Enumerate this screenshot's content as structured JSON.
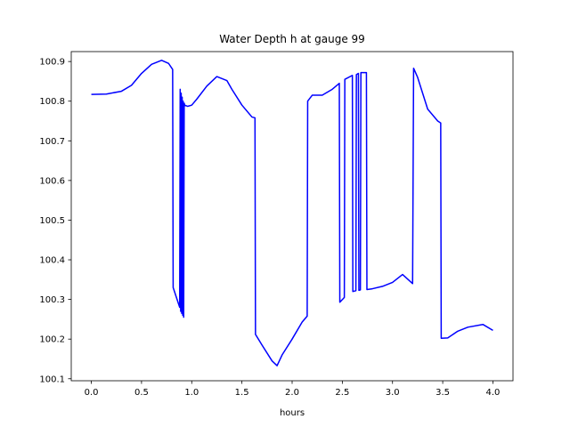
{
  "chart_data": {
    "type": "line",
    "title": "Water Depth h at gauge 99",
    "xlabel": "hours",
    "ylabel": "",
    "xlim": [
      -0.2,
      4.2
    ],
    "ylim": [
      100.095,
      100.925
    ],
    "xticks": [
      0.0,
      0.5,
      1.0,
      1.5,
      2.0,
      2.5,
      3.0,
      3.5,
      4.0
    ],
    "xtick_labels": [
      "0.0",
      "0.5",
      "1.0",
      "1.5",
      "2.0",
      "2.5",
      "3.0",
      "3.5",
      "4.0"
    ],
    "yticks": [
      100.1,
      100.2,
      100.3,
      100.4,
      100.5,
      100.6,
      100.7,
      100.8,
      100.9
    ],
    "ytick_labels": [
      "100.1",
      "100.2",
      "100.3",
      "100.4",
      "100.5",
      "100.6",
      "100.7",
      "100.8",
      "100.9"
    ],
    "grid": false,
    "color": "#0000ff",
    "series": [
      {
        "x": [
          0.0,
          0.15,
          0.3,
          0.4,
          0.5,
          0.6,
          0.7,
          0.77,
          0.81,
          0.815,
          0.88,
          0.885,
          0.89,
          0.895,
          0.9,
          0.905,
          0.91,
          0.915,
          0.92,
          0.925,
          0.93,
          0.96,
          1.0,
          1.05,
          1.15,
          1.25,
          1.35,
          1.4,
          1.5,
          1.6,
          1.63,
          1.635,
          1.7,
          1.8,
          1.85,
          1.9,
          2.0,
          2.1,
          2.15,
          2.155,
          2.2,
          2.3,
          2.4,
          2.47,
          2.475,
          2.52,
          2.525,
          2.6,
          2.605,
          2.635,
          2.64,
          2.66,
          2.665,
          2.68,
          2.685,
          2.74,
          2.745,
          2.8,
          2.9,
          3.0,
          3.1,
          3.2,
          3.21,
          3.25,
          3.35,
          3.45,
          3.48,
          3.485,
          3.55,
          3.65,
          3.75,
          3.9,
          4.0
        ],
        "y": [
          100.817,
          100.818,
          100.825,
          100.84,
          100.87,
          100.893,
          100.903,
          100.895,
          100.88,
          100.33,
          100.28,
          100.83,
          100.27,
          100.82,
          100.265,
          100.81,
          100.26,
          100.8,
          100.255,
          100.795,
          100.79,
          100.787,
          100.79,
          100.805,
          100.838,
          100.862,
          100.852,
          100.83,
          100.79,
          100.76,
          100.758,
          100.212,
          100.185,
          100.145,
          100.133,
          100.16,
          100.2,
          100.243,
          100.258,
          100.8,
          100.815,
          100.815,
          100.83,
          100.845,
          100.293,
          100.305,
          100.855,
          100.865,
          100.32,
          100.322,
          100.867,
          100.87,
          100.323,
          100.324,
          100.872,
          100.872,
          100.325,
          100.327,
          100.333,
          100.343,
          100.363,
          100.34,
          100.883,
          100.86,
          100.78,
          100.75,
          100.745,
          100.202,
          100.203,
          100.22,
          100.23,
          100.237,
          100.222
        ]
      }
    ]
  }
}
